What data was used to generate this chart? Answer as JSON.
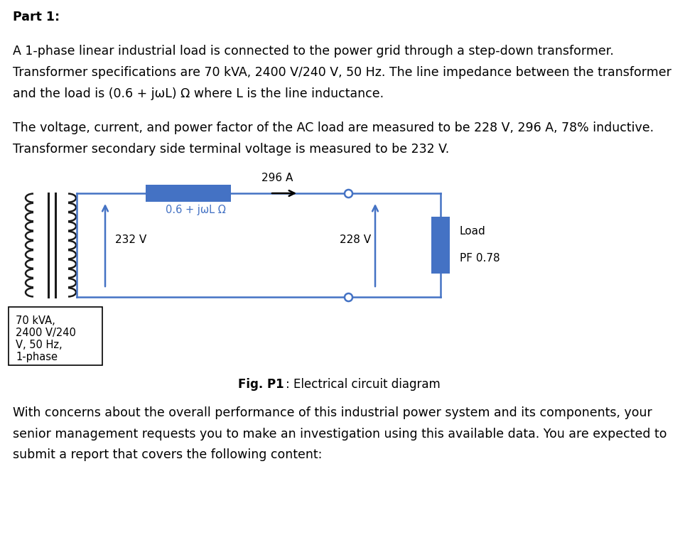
{
  "bg_color": "#ffffff",
  "text_color": "#000000",
  "blue_color": "#4472c4",
  "coil_color": "#1a1a1a",
  "line_color": "#4472c4",
  "part1_bold": "Part 1:",
  "line1": "A 1-phase linear industrial load is connected to the power grid through a step-down transformer.",
  "line2": "Transformer specifications are 70 kVA, 2400 V/240 V, 50 Hz. The line impedance between the transformer",
  "line3": "and the load is (0.6 + jωL) Ω where L is the line inductance.",
  "line4": "The voltage, current, and power factor of the AC load are measured to be 228 V, 296 A, 78% inductive.",
  "line5": "Transformer secondary side terminal voltage is measured to be 232 V.",
  "circuit_label_current": "296 A",
  "circuit_label_v1": "232 V",
  "circuit_label_impedance": "0.6 + jωL Ω",
  "circuit_label_v2": "228 V",
  "circuit_label_load": "Load",
  "circuit_label_pf": "PF 0.78",
  "transformer_box_line1": "70 kVA,",
  "transformer_box_line2": "2400 V/240",
  "transformer_box_line3": "V, 50 Hz,",
  "transformer_box_line4": "1-phase",
  "fig_caption_bold": "Fig. P1",
  "fig_caption_rest": ": Electrical circuit diagram",
  "para3_line1": "With concerns about the overall performance of this industrial power system and its components, your",
  "para3_line2": "senior management requests you to make an investigation using this available data. You are expected to",
  "para3_line3": "submit a report that covers the following content:"
}
